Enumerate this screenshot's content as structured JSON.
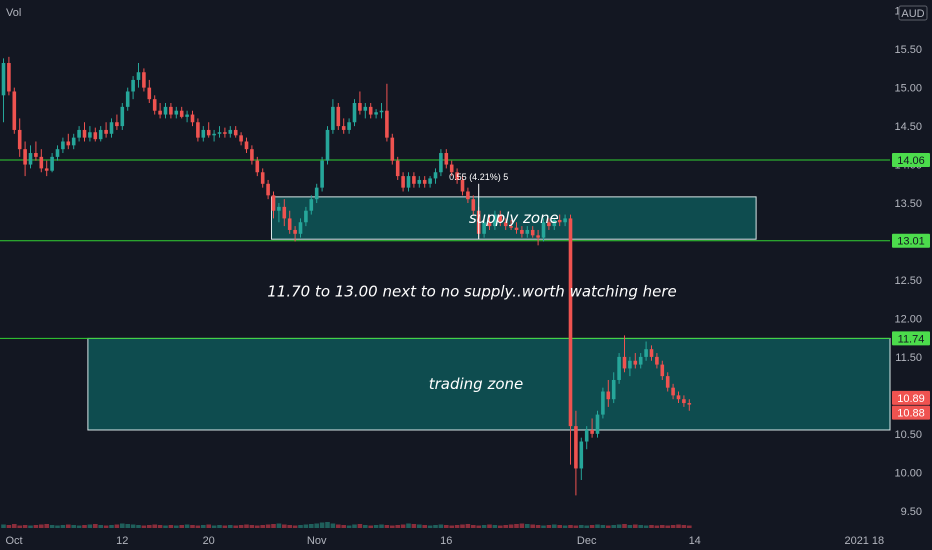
{
  "header": {
    "volume_label": "Vol",
    "currency_label": "AUD"
  },
  "colors": {
    "background": "#131722",
    "up": "#26a69a",
    "down": "#ef5350",
    "vol_up": "#1f5f5b",
    "vol_down": "#8a2d3b",
    "level_line": "#32d232",
    "zone_fill": "#0e4f52",
    "zone_border": "#d8e8e8",
    "tag_green": "#4cdc4c",
    "tag_red": "#ef5350"
  },
  "annotations": {
    "supply_zone": "supply zone",
    "trading_zone": "trading zone",
    "note": "11.70 to 13.00 next to no supply..worth watching here",
    "measure": "0.55 (4.21%) 5"
  },
  "chart_data": {
    "type": "candlestick",
    "price_axis": {
      "range": [
        9.25,
        16.1
      ],
      "ticks": [
        "9.50",
        "10.00",
        "10.50",
        "11.00",
        "11.50",
        "12.00",
        "12.50",
        "13.00",
        "13.50",
        "14.00",
        "14.50",
        "15.00",
        "15.50",
        "16.00"
      ]
    },
    "time_axis": {
      "labels": [
        {
          "text": "Oct",
          "bar": 1
        },
        {
          "text": "12",
          "bar": 22
        },
        {
          "text": "20",
          "bar": 38
        },
        {
          "text": "Nov",
          "bar": 58
        },
        {
          "text": "16",
          "bar": 82
        },
        {
          "text": "Dec",
          "bar": 108
        },
        {
          "text": "14",
          "bar": 128
        },
        {
          "text": "2021",
          "bar": 158
        },
        {
          "text": "18",
          "bar": 178
        }
      ]
    },
    "levels": [
      {
        "value": 14.06,
        "label": "14.06"
      },
      {
        "value": 13.01,
        "label": "13.01"
      },
      {
        "value": 11.74,
        "label": "11.74"
      }
    ],
    "price_tags": [
      {
        "value": 10.89,
        "label": "10.89"
      },
      {
        "value": 10.88,
        "label": "10.88"
      }
    ],
    "zones": [
      {
        "name": "supply zone",
        "from_bar": 50,
        "to_bar": 139,
        "low": 13.03,
        "high": 13.58
      },
      {
        "name": "trading zone",
        "from_bar": 16,
        "to_bar": 178,
        "low": 10.55,
        "high": 11.74
      }
    ],
    "candles": [
      {
        "o": 14.9,
        "h": 15.38,
        "l": 14.55,
        "c": 15.32
      },
      {
        "o": 15.32,
        "h": 15.4,
        "l": 14.9,
        "c": 14.95
      },
      {
        "o": 14.95,
        "h": 15.0,
        "l": 14.4,
        "c": 14.45
      },
      {
        "o": 14.45,
        "h": 14.6,
        "l": 14.1,
        "c": 14.2
      },
      {
        "o": 14.2,
        "h": 14.3,
        "l": 13.85,
        "c": 14.0
      },
      {
        "o": 14.0,
        "h": 14.25,
        "l": 13.95,
        "c": 14.15
      },
      {
        "o": 14.15,
        "h": 14.3,
        "l": 14.05,
        "c": 14.1
      },
      {
        "o": 14.1,
        "h": 14.2,
        "l": 13.9,
        "c": 13.95
      },
      {
        "o": 13.95,
        "h": 14.05,
        "l": 13.85,
        "c": 13.92
      },
      {
        "o": 13.92,
        "h": 14.15,
        "l": 13.9,
        "c": 14.1
      },
      {
        "o": 14.1,
        "h": 14.25,
        "l": 14.05,
        "c": 14.2
      },
      {
        "o": 14.2,
        "h": 14.35,
        "l": 14.15,
        "c": 14.3
      },
      {
        "o": 14.3,
        "h": 14.4,
        "l": 14.2,
        "c": 14.25
      },
      {
        "o": 14.25,
        "h": 14.4,
        "l": 14.2,
        "c": 14.35
      },
      {
        "o": 14.35,
        "h": 14.5,
        "l": 14.3,
        "c": 14.45
      },
      {
        "o": 14.45,
        "h": 14.55,
        "l": 14.3,
        "c": 14.35
      },
      {
        "o": 14.35,
        "h": 14.5,
        "l": 14.3,
        "c": 14.42
      },
      {
        "o": 14.42,
        "h": 14.48,
        "l": 14.3,
        "c": 14.33
      },
      {
        "o": 14.33,
        "h": 14.5,
        "l": 14.3,
        "c": 14.45
      },
      {
        "o": 14.45,
        "h": 14.55,
        "l": 14.35,
        "c": 14.4
      },
      {
        "o": 14.4,
        "h": 14.6,
        "l": 14.35,
        "c": 14.55
      },
      {
        "o": 14.55,
        "h": 14.65,
        "l": 14.45,
        "c": 14.5
      },
      {
        "o": 14.5,
        "h": 14.8,
        "l": 14.45,
        "c": 14.75
      },
      {
        "o": 14.75,
        "h": 15.0,
        "l": 14.7,
        "c": 14.95
      },
      {
        "o": 14.95,
        "h": 15.15,
        "l": 14.85,
        "c": 15.1
      },
      {
        "o": 15.1,
        "h": 15.32,
        "l": 15.0,
        "c": 15.2
      },
      {
        "o": 15.2,
        "h": 15.25,
        "l": 14.95,
        "c": 15.0
      },
      {
        "o": 15.0,
        "h": 15.1,
        "l": 14.8,
        "c": 14.85
      },
      {
        "o": 14.85,
        "h": 14.9,
        "l": 14.65,
        "c": 14.7
      },
      {
        "o": 14.7,
        "h": 14.8,
        "l": 14.6,
        "c": 14.65
      },
      {
        "o": 14.65,
        "h": 14.8,
        "l": 14.6,
        "c": 14.75
      },
      {
        "o": 14.75,
        "h": 14.8,
        "l": 14.6,
        "c": 14.65
      },
      {
        "o": 14.65,
        "h": 14.75,
        "l": 14.6,
        "c": 14.7
      },
      {
        "o": 14.7,
        "h": 14.75,
        "l": 14.6,
        "c": 14.62
      },
      {
        "o": 14.62,
        "h": 14.7,
        "l": 14.55,
        "c": 14.65
      },
      {
        "o": 14.65,
        "h": 14.7,
        "l": 14.5,
        "c": 14.55
      },
      {
        "o": 14.55,
        "h": 14.6,
        "l": 14.3,
        "c": 14.35
      },
      {
        "o": 14.35,
        "h": 14.5,
        "l": 14.3,
        "c": 14.45
      },
      {
        "o": 14.45,
        "h": 14.55,
        "l": 14.35,
        "c": 14.38
      },
      {
        "o": 14.38,
        "h": 14.45,
        "l": 14.3,
        "c": 14.4
      },
      {
        "o": 14.4,
        "h": 14.5,
        "l": 14.35,
        "c": 14.42
      },
      {
        "o": 14.42,
        "h": 14.48,
        "l": 14.35,
        "c": 14.4
      },
      {
        "o": 14.4,
        "h": 14.5,
        "l": 14.35,
        "c": 14.45
      },
      {
        "o": 14.45,
        "h": 14.5,
        "l": 14.35,
        "c": 14.38
      },
      {
        "o": 14.38,
        "h": 14.42,
        "l": 14.25,
        "c": 14.3
      },
      {
        "o": 14.3,
        "h": 14.35,
        "l": 14.15,
        "c": 14.2
      },
      {
        "o": 14.2,
        "h": 14.25,
        "l": 14.0,
        "c": 14.05
      },
      {
        "o": 14.05,
        "h": 14.1,
        "l": 13.85,
        "c": 13.9
      },
      {
        "o": 13.9,
        "h": 13.95,
        "l": 13.7,
        "c": 13.75
      },
      {
        "o": 13.75,
        "h": 13.8,
        "l": 13.55,
        "c": 13.6
      },
      {
        "o": 13.6,
        "h": 13.65,
        "l": 13.3,
        "c": 13.4
      },
      {
        "o": 13.4,
        "h": 13.5,
        "l": 13.25,
        "c": 13.45
      },
      {
        "o": 13.45,
        "h": 13.55,
        "l": 13.2,
        "c": 13.3
      },
      {
        "o": 13.3,
        "h": 13.4,
        "l": 13.1,
        "c": 13.15
      },
      {
        "o": 13.15,
        "h": 13.2,
        "l": 13.0,
        "c": 13.1
      },
      {
        "o": 13.1,
        "h": 13.3,
        "l": 13.05,
        "c": 13.25
      },
      {
        "o": 13.25,
        "h": 13.45,
        "l": 13.2,
        "c": 13.4
      },
      {
        "o": 13.4,
        "h": 13.6,
        "l": 13.35,
        "c": 13.55
      },
      {
        "o": 13.55,
        "h": 13.75,
        "l": 13.5,
        "c": 13.7
      },
      {
        "o": 13.7,
        "h": 14.1,
        "l": 13.65,
        "c": 14.05
      },
      {
        "o": 14.05,
        "h": 14.5,
        "l": 14.0,
        "c": 14.45
      },
      {
        "o": 14.45,
        "h": 14.85,
        "l": 14.4,
        "c": 14.75
      },
      {
        "o": 14.75,
        "h": 14.8,
        "l": 14.45,
        "c": 14.5
      },
      {
        "o": 14.5,
        "h": 14.6,
        "l": 14.4,
        "c": 14.45
      },
      {
        "o": 14.45,
        "h": 14.6,
        "l": 14.4,
        "c": 14.55
      },
      {
        "o": 14.55,
        "h": 14.85,
        "l": 14.5,
        "c": 14.8
      },
      {
        "o": 14.8,
        "h": 14.95,
        "l": 14.65,
        "c": 14.7
      },
      {
        "o": 14.7,
        "h": 14.8,
        "l": 14.6,
        "c": 14.75
      },
      {
        "o": 14.75,
        "h": 14.8,
        "l": 14.6,
        "c": 14.65
      },
      {
        "o": 14.65,
        "h": 14.72,
        "l": 14.6,
        "c": 14.68
      },
      {
        "o": 14.68,
        "h": 14.8,
        "l": 14.6,
        "c": 14.7
      },
      {
        "o": 14.7,
        "h": 15.05,
        "l": 14.3,
        "c": 14.35
      },
      {
        "o": 14.35,
        "h": 14.4,
        "l": 14.0,
        "c": 14.05
      },
      {
        "o": 14.05,
        "h": 14.1,
        "l": 13.8,
        "c": 13.85
      },
      {
        "o": 13.85,
        "h": 13.9,
        "l": 13.65,
        "c": 13.7
      },
      {
        "o": 13.7,
        "h": 13.9,
        "l": 13.65,
        "c": 13.85
      },
      {
        "o": 13.85,
        "h": 13.9,
        "l": 13.7,
        "c": 13.75
      },
      {
        "o": 13.75,
        "h": 13.85,
        "l": 13.7,
        "c": 13.8
      },
      {
        "o": 13.8,
        "h": 13.85,
        "l": 13.7,
        "c": 13.75
      },
      {
        "o": 13.75,
        "h": 13.85,
        "l": 13.7,
        "c": 13.82
      },
      {
        "o": 13.82,
        "h": 13.95,
        "l": 13.75,
        "c": 13.9
      },
      {
        "o": 13.9,
        "h": 14.2,
        "l": 13.85,
        "c": 14.15
      },
      {
        "o": 14.15,
        "h": 14.2,
        "l": 13.95,
        "c": 14.0
      },
      {
        "o": 14.0,
        "h": 14.05,
        "l": 13.85,
        "c": 13.9
      },
      {
        "o": 13.9,
        "h": 13.95,
        "l": 13.75,
        "c": 13.8
      },
      {
        "o": 13.8,
        "h": 13.85,
        "l": 13.6,
        "c": 13.65
      },
      {
        "o": 13.65,
        "h": 13.7,
        "l": 13.5,
        "c": 13.55
      },
      {
        "o": 13.55,
        "h": 13.6,
        "l": 13.35,
        "c": 13.4
      },
      {
        "o": 13.4,
        "h": 13.45,
        "l": 13.05,
        "c": 13.1
      },
      {
        "o": 13.1,
        "h": 13.3,
        "l": 13.05,
        "c": 13.25
      },
      {
        "o": 13.25,
        "h": 13.35,
        "l": 13.15,
        "c": 13.2
      },
      {
        "o": 13.2,
        "h": 13.4,
        "l": 13.15,
        "c": 13.35
      },
      {
        "o": 13.35,
        "h": 13.4,
        "l": 13.2,
        "c": 13.25
      },
      {
        "o": 13.25,
        "h": 13.3,
        "l": 13.15,
        "c": 13.2
      },
      {
        "o": 13.2,
        "h": 13.28,
        "l": 13.15,
        "c": 13.18
      },
      {
        "o": 13.18,
        "h": 13.25,
        "l": 13.1,
        "c": 13.15
      },
      {
        "o": 13.15,
        "h": 13.2,
        "l": 13.05,
        "c": 13.1
      },
      {
        "o": 13.1,
        "h": 13.2,
        "l": 13.05,
        "c": 13.15
      },
      {
        "o": 13.15,
        "h": 13.2,
        "l": 13.05,
        "c": 13.08
      },
      {
        "o": 13.08,
        "h": 13.15,
        "l": 12.95,
        "c": 13.05
      },
      {
        "o": 13.05,
        "h": 13.3,
        "l": 13.0,
        "c": 13.25
      },
      {
        "o": 13.25,
        "h": 13.3,
        "l": 13.15,
        "c": 13.2
      },
      {
        "o": 13.2,
        "h": 13.3,
        "l": 13.15,
        "c": 13.28
      },
      {
        "o": 13.28,
        "h": 13.35,
        "l": 13.2,
        "c": 13.25
      },
      {
        "o": 13.25,
        "h": 13.35,
        "l": 13.2,
        "c": 13.3
      },
      {
        "o": 13.3,
        "h": 13.35,
        "l": 10.1,
        "c": 10.6
      },
      {
        "o": 10.6,
        "h": 10.8,
        "l": 9.7,
        "c": 10.05
      },
      {
        "o": 10.05,
        "h": 10.45,
        "l": 9.9,
        "c": 10.4
      },
      {
        "o": 10.4,
        "h": 10.6,
        "l": 10.3,
        "c": 10.55
      },
      {
        "o": 10.55,
        "h": 10.7,
        "l": 10.45,
        "c": 10.5
      },
      {
        "o": 10.5,
        "h": 10.8,
        "l": 10.45,
        "c": 10.75
      },
      {
        "o": 10.75,
        "h": 11.1,
        "l": 10.7,
        "c": 11.05
      },
      {
        "o": 11.05,
        "h": 11.2,
        "l": 10.85,
        "c": 10.95
      },
      {
        "o": 10.95,
        "h": 11.3,
        "l": 10.9,
        "c": 11.2
      },
      {
        "o": 11.2,
        "h": 11.55,
        "l": 11.15,
        "c": 11.5
      },
      {
        "o": 11.5,
        "h": 11.78,
        "l": 11.3,
        "c": 11.35
      },
      {
        "o": 11.35,
        "h": 11.5,
        "l": 11.25,
        "c": 11.45
      },
      {
        "o": 11.45,
        "h": 11.55,
        "l": 11.35,
        "c": 11.4
      },
      {
        "o": 11.4,
        "h": 11.55,
        "l": 11.35,
        "c": 11.5
      },
      {
        "o": 11.5,
        "h": 11.7,
        "l": 11.45,
        "c": 11.6
      },
      {
        "o": 11.6,
        "h": 11.65,
        "l": 11.45,
        "c": 11.5
      },
      {
        "o": 11.5,
        "h": 11.55,
        "l": 11.35,
        "c": 11.4
      },
      {
        "o": 11.4,
        "h": 11.45,
        "l": 11.2,
        "c": 11.25
      },
      {
        "o": 11.25,
        "h": 11.3,
        "l": 11.05,
        "c": 11.1
      },
      {
        "o": 11.1,
        "h": 11.15,
        "l": 10.95,
        "c": 11.0
      },
      {
        "o": 11.0,
        "h": 11.05,
        "l": 10.9,
        "c": 10.95
      },
      {
        "o": 10.95,
        "h": 11.0,
        "l": 10.85,
        "c": 10.9
      },
      {
        "o": 10.9,
        "h": 10.95,
        "l": 10.8,
        "c": 10.88
      }
    ],
    "volume": [
      7,
      6,
      8,
      5,
      6,
      5,
      6,
      7,
      8,
      6,
      5,
      6,
      7,
      6,
      5,
      6,
      7,
      8,
      6,
      5,
      6,
      7,
      9,
      8,
      7,
      6,
      5,
      6,
      7,
      6,
      5,
      6,
      5,
      6,
      7,
      6,
      5,
      6,
      7,
      5,
      6,
      5,
      6,
      5,
      6,
      7,
      6,
      5,
      6,
      7,
      8,
      9,
      7,
      6,
      5,
      6,
      7,
      8,
      9,
      11,
      12,
      9,
      7,
      6,
      5,
      7,
      8,
      6,
      5,
      6,
      7,
      6,
      5,
      6,
      7,
      9,
      8,
      7,
      6,
      5,
      6,
      7,
      6,
      5,
      6,
      7,
      8,
      6,
      5,
      6,
      7,
      6,
      5,
      6,
      7,
      8,
      9,
      8,
      7,
      6,
      5,
      6,
      7,
      6,
      5,
      6,
      5,
      6,
      5,
      6,
      7,
      6,
      5,
      6,
      7,
      8,
      6,
      7,
      6,
      5,
      6,
      5,
      6,
      5,
      6,
      7,
      6,
      5,
      6,
      5,
      20,
      90,
      50,
      28,
      30,
      26,
      24,
      22,
      18,
      14,
      12,
      10,
      9,
      8,
      7,
      8,
      9,
      10,
      8,
      7,
      6,
      7,
      8,
      9,
      10,
      8,
      7,
      6,
      5,
      6,
      7,
      6,
      5,
      6,
      5,
      6,
      7,
      6
    ]
  }
}
